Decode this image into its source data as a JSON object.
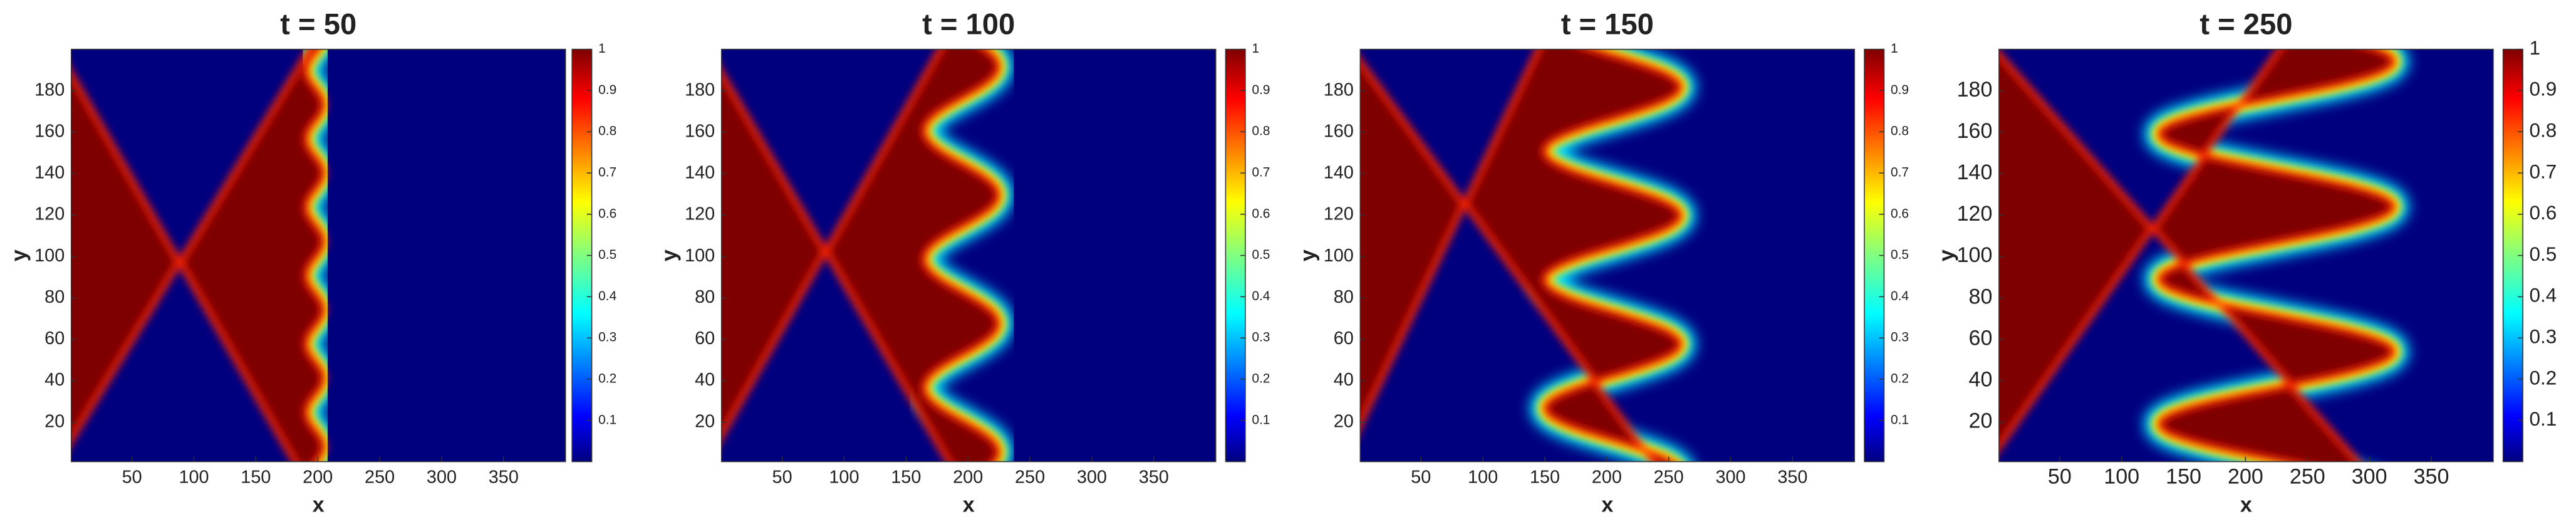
{
  "chart_data": [
    {
      "type": "heatmap",
      "title": "t = 50",
      "xlabel": "x",
      "ylabel": "y",
      "colormap": "jet",
      "xlim": [
        1,
        400
      ],
      "ylim": [
        1,
        200
      ],
      "xticks": [
        50,
        100,
        150,
        200,
        250,
        300,
        350
      ],
      "yticks": [
        20,
        40,
        60,
        80,
        100,
        120,
        140,
        160,
        180
      ],
      "clim": [
        0,
        1
      ],
      "cticks": [
        0.1,
        0.2,
        0.3,
        0.4,
        0.5,
        0.6,
        0.7,
        0.8,
        0.9,
        1
      ]
    },
    {
      "type": "heatmap",
      "title": "t = 100",
      "xlabel": "x",
      "ylabel": "y",
      "colormap": "jet",
      "xlim": [
        1,
        400
      ],
      "ylim": [
        1,
        200
      ],
      "xticks": [
        50,
        100,
        150,
        200,
        250,
        300,
        350
      ],
      "yticks": [
        20,
        40,
        60,
        80,
        100,
        120,
        140,
        160,
        180
      ],
      "clim": [
        0,
        1
      ],
      "cticks": [
        0.1,
        0.2,
        0.3,
        0.4,
        0.5,
        0.6,
        0.7,
        0.8,
        0.9,
        1
      ]
    },
    {
      "type": "heatmap",
      "title": "t = 150",
      "xlabel": "x",
      "ylabel": "y",
      "colormap": "jet",
      "xlim": [
        1,
        400
      ],
      "ylim": [
        1,
        200
      ],
      "xticks": [
        50,
        100,
        150,
        200,
        250,
        300,
        350
      ],
      "yticks": [
        20,
        40,
        60,
        80,
        100,
        120,
        140,
        160,
        180
      ],
      "clim": [
        0,
        1
      ],
      "cticks": [
        0.1,
        0.2,
        0.3,
        0.4,
        0.5,
        0.6,
        0.7,
        0.8,
        0.9,
        1
      ]
    },
    {
      "type": "heatmap",
      "title": "t = 250",
      "xlabel": "x",
      "ylabel": "y",
      "colormap": "jet",
      "xlim": [
        1,
        400
      ],
      "ylim": [
        1,
        200
      ],
      "xticks": [
        50,
        100,
        150,
        200,
        250,
        300,
        350
      ],
      "yticks": [
        20,
        40,
        60,
        80,
        100,
        120,
        140,
        160,
        180
      ],
      "clim": [
        0,
        1
      ],
      "cticks": [
        0.1,
        0.2,
        0.3,
        0.4,
        0.5,
        0.6,
        0.7,
        0.8,
        0.9,
        1
      ]
    }
  ]
}
